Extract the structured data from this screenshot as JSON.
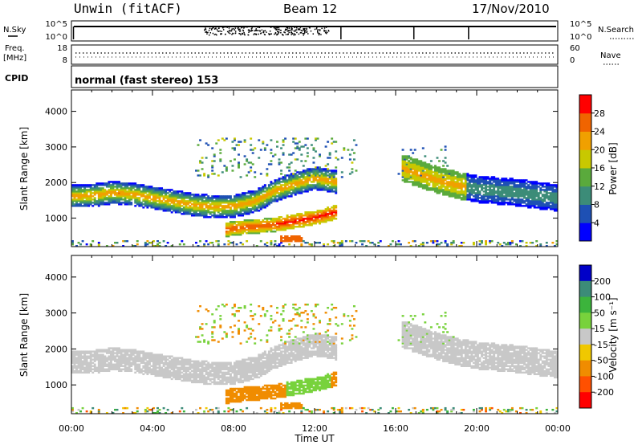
{
  "header": {
    "station": "Unwin (fitACF)",
    "beam": "Beam 12",
    "date": "17/Nov/2010"
  },
  "top_panels": {
    "nsky_label": "N.Sky",
    "nsky_ticks": [
      "10^5",
      "10^0"
    ],
    "nsearch_ticks": [
      "10^5",
      "10^0"
    ],
    "nsearch_label": "N.Search",
    "freq_label_1": "Freq.",
    "freq_label_2": "[MHz]",
    "freq_ticks": [
      "18",
      "8"
    ],
    "nave_ticks": [
      "60",
      "0"
    ],
    "nave_label": "Nave",
    "cpid_label": "CPID",
    "cpid_text": "normal (fast stereo) 153"
  },
  "chart_data": [
    {
      "type": "heatmap",
      "title": "Power",
      "xlabel": "",
      "ylabel": "Slant Range [km]",
      "xlim": [
        0,
        24
      ],
      "ylim": [
        200,
        4600
      ],
      "y_ticks": [
        "1000",
        "2000",
        "3000",
        "4000"
      ],
      "colorbar": {
        "label": "Power [dB]",
        "ticks": [
          "4",
          "8",
          "12",
          "16",
          "20",
          "24",
          "28"
        ],
        "colors": [
          "#0000ff",
          "#1e50b4",
          "#3c8c78",
          "#5aaa3c",
          "#c8c800",
          "#f0a000",
          "#f06400",
          "#ff0000"
        ]
      },
      "features": [
        {
          "name": "band-main",
          "x": [
            0,
            1,
            2,
            3,
            4,
            5,
            6,
            7,
            8,
            9,
            10,
            11,
            12,
            13
          ],
          "y": [
            1600,
            1620,
            1700,
            1650,
            1550,
            1450,
            1350,
            1300,
            1320,
            1450,
            1750,
            1950,
            2100,
            2000
          ]
        },
        {
          "name": "band-low",
          "x": [
            7.5,
            8,
            9,
            10,
            11,
            12,
            13
          ],
          "y": [
            650,
            700,
            750,
            800,
            900,
            1000,
            1150
          ]
        },
        {
          "name": "band-right",
          "x": [
            16.2,
            17,
            18,
            19,
            20,
            21,
            22,
            23,
            24
          ],
          "y": [
            2400,
            2250,
            2050,
            1900,
            1800,
            1750,
            1700,
            1620,
            1550
          ]
        }
      ]
    },
    {
      "type": "heatmap",
      "title": "Velocity",
      "xlabel": "Time UT",
      "ylabel": "Slant Range [km]",
      "xlim": [
        0,
        24
      ],
      "ylim": [
        200,
        4600
      ],
      "x_ticks": [
        "00:00",
        "04:00",
        "08:00",
        "12:00",
        "16:00",
        "20:00",
        "00:00"
      ],
      "y_ticks": [
        "1000",
        "2000",
        "3000",
        "4000"
      ],
      "colorbar": {
        "label": "Velocity [m s⁻¹]",
        "ticks": [
          "200",
          "100",
          "50",
          "15",
          "-15",
          "-50",
          "-100",
          "-200"
        ],
        "colors": [
          "#0000c8",
          "#3c8c78",
          "#3cb43c",
          "#78d23c",
          "#c8c8c8",
          "#f0c800",
          "#f08c00",
          "#ff5000",
          "#ff0000"
        ]
      }
    }
  ]
}
